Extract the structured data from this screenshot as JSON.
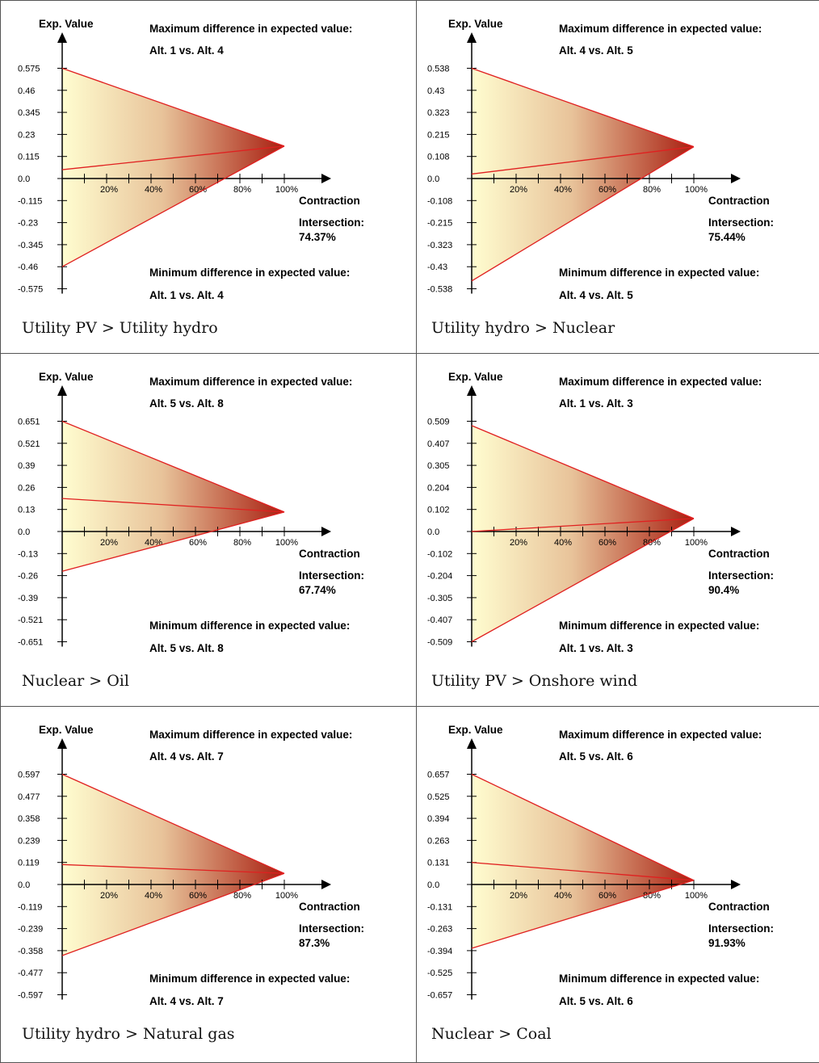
{
  "chart_data": [
    {
      "type": "area",
      "caption": "Utility PV > Utility hydro",
      "y_axis_label": "Exp. Value",
      "x_axis_label": "Contraction",
      "y_ticks": [
        "0.575",
        "0.46",
        "0.345",
        "0.23",
        "0.115",
        "0.0",
        "-0.115",
        "-0.23",
        "-0.345",
        "-0.46",
        "-0.575"
      ],
      "x_ticks": [
        "20%",
        "40%",
        "60%",
        "80%",
        "100%"
      ],
      "ylim": [
        -0.575,
        0.575
      ],
      "max_title": "Maximum difference in expected value:",
      "max_pair": "Alt. 1 vs. Alt. 4",
      "min_title": "Minimum difference in expected value:",
      "min_pair": "Alt. 1 vs. Alt. 4",
      "intersection_label": "Intersection:",
      "intersection_value": "74.37%",
      "upper_start": 0.575,
      "lower_start": -0.46,
      "mid_start": 0.046,
      "end_value": 0.169
    },
    {
      "type": "area",
      "caption": "Utility hydro > Nuclear",
      "y_axis_label": "Exp. Value",
      "x_axis_label": "Contraction",
      "y_ticks": [
        "0.538",
        "0.43",
        "0.323",
        "0.215",
        "0.108",
        "0.0",
        "-0.108",
        "-0.215",
        "-0.323",
        "-0.43",
        "-0.538"
      ],
      "x_ticks": [
        "20%",
        "40%",
        "60%",
        "80%",
        "100%"
      ],
      "ylim": [
        -0.538,
        0.538
      ],
      "max_title": "Maximum difference in expected value:",
      "max_pair": "Alt. 4 vs. Alt. 5",
      "min_title": "Minimum difference in expected value:",
      "min_pair": "Alt. 4 vs. Alt. 5",
      "intersection_label": "Intersection:",
      "intersection_value": "75.44%",
      "upper_start": 0.538,
      "lower_start": -0.5,
      "mid_start": 0.022,
      "end_value": 0.155
    },
    {
      "type": "area",
      "caption": "Nuclear > Oil",
      "y_axis_label": "Exp. Value",
      "x_axis_label": "Contraction",
      "y_ticks": [
        "0.651",
        "0.521",
        "0.39",
        "0.26",
        "0.13",
        "0.0",
        "-0.13",
        "-0.26",
        "-0.39",
        "-0.521",
        "-0.651"
      ],
      "x_ticks": [
        "20%",
        "40%",
        "60%",
        "80%",
        "100%"
      ],
      "ylim": [
        -0.651,
        0.651
      ],
      "max_title": "Maximum difference in expected value:",
      "max_pair": "Alt. 5 vs. Alt. 8",
      "min_title": "Minimum difference in expected value:",
      "min_pair": "Alt. 5 vs. Alt. 8",
      "intersection_label": "Intersection:",
      "intersection_value": "67.74%",
      "upper_start": 0.651,
      "lower_start": -0.235,
      "mid_start": 0.195,
      "end_value": 0.115
    },
    {
      "type": "area",
      "caption": "Utility PV > Onshore wind",
      "y_axis_label": "Exp. Value",
      "x_axis_label": "Contraction",
      "y_ticks": [
        "0.509",
        "0.407",
        "0.305",
        "0.204",
        "0.102",
        "0.0",
        "-0.102",
        "-0.204",
        "-0.305",
        "-0.407",
        "-0.509"
      ],
      "x_ticks": [
        "20%",
        "40%",
        "60%",
        "80%",
        "100%"
      ],
      "ylim": [
        -0.509,
        0.509
      ],
      "max_title": "Maximum difference in expected value:",
      "max_pair": "Alt. 1 vs. Alt. 3",
      "min_title": "Minimum difference in expected value:",
      "min_pair": "Alt. 1 vs. Alt. 3",
      "intersection_label": "Intersection:",
      "intersection_value": "90.4%",
      "upper_start": 0.489,
      "lower_start": -0.509,
      "mid_start": 0.0,
      "end_value": 0.06
    },
    {
      "type": "area",
      "caption": "Utility hydro > Natural gas",
      "y_axis_label": "Exp. Value",
      "x_axis_label": "Contraction",
      "y_ticks": [
        "0.597",
        "0.477",
        "0.358",
        "0.239",
        "0.119",
        "0.0",
        "-0.119",
        "-0.239",
        "-0.358",
        "-0.477",
        "-0.597"
      ],
      "x_ticks": [
        "20%",
        "40%",
        "60%",
        "80%",
        "100%"
      ],
      "ylim": [
        -0.597,
        0.597
      ],
      "max_title": "Maximum difference in expected value:",
      "max_pair": "Alt. 4 vs. Alt. 7",
      "min_title": "Minimum difference in expected value:",
      "min_pair": "Alt. 4 vs. Alt. 7",
      "intersection_label": "Intersection:",
      "intersection_value": "87.3%",
      "upper_start": 0.597,
      "lower_start": -0.385,
      "mid_start": 0.108,
      "end_value": 0.06
    },
    {
      "type": "area",
      "caption": "Nuclear > Coal",
      "y_axis_label": "Exp. Value",
      "x_axis_label": "Contraction",
      "y_ticks": [
        "0.657",
        "0.525",
        "0.394",
        "0.263",
        "0.131",
        "0.0",
        "-0.131",
        "-0.263",
        "-0.394",
        "-0.525",
        "-0.657"
      ],
      "x_ticks": [
        "20%",
        "40%",
        "60%",
        "80%",
        "100%"
      ],
      "ylim": [
        -0.657,
        0.657
      ],
      "max_title": "Maximum difference in expected value:",
      "max_pair": "Alt. 5 vs. Alt. 6",
      "min_title": "Minimum difference in expected value:",
      "min_pair": "Alt. 5 vs. Alt. 6",
      "intersection_label": "Intersection:",
      "intersection_value": "91.93%",
      "upper_start": 0.657,
      "lower_start": -0.38,
      "mid_start": 0.131,
      "end_value": 0.025
    }
  ],
  "colors": {
    "line": "#e02020",
    "fill_start": "#fffdd0",
    "fill_end": "#a81e10",
    "axis": "#000000"
  }
}
